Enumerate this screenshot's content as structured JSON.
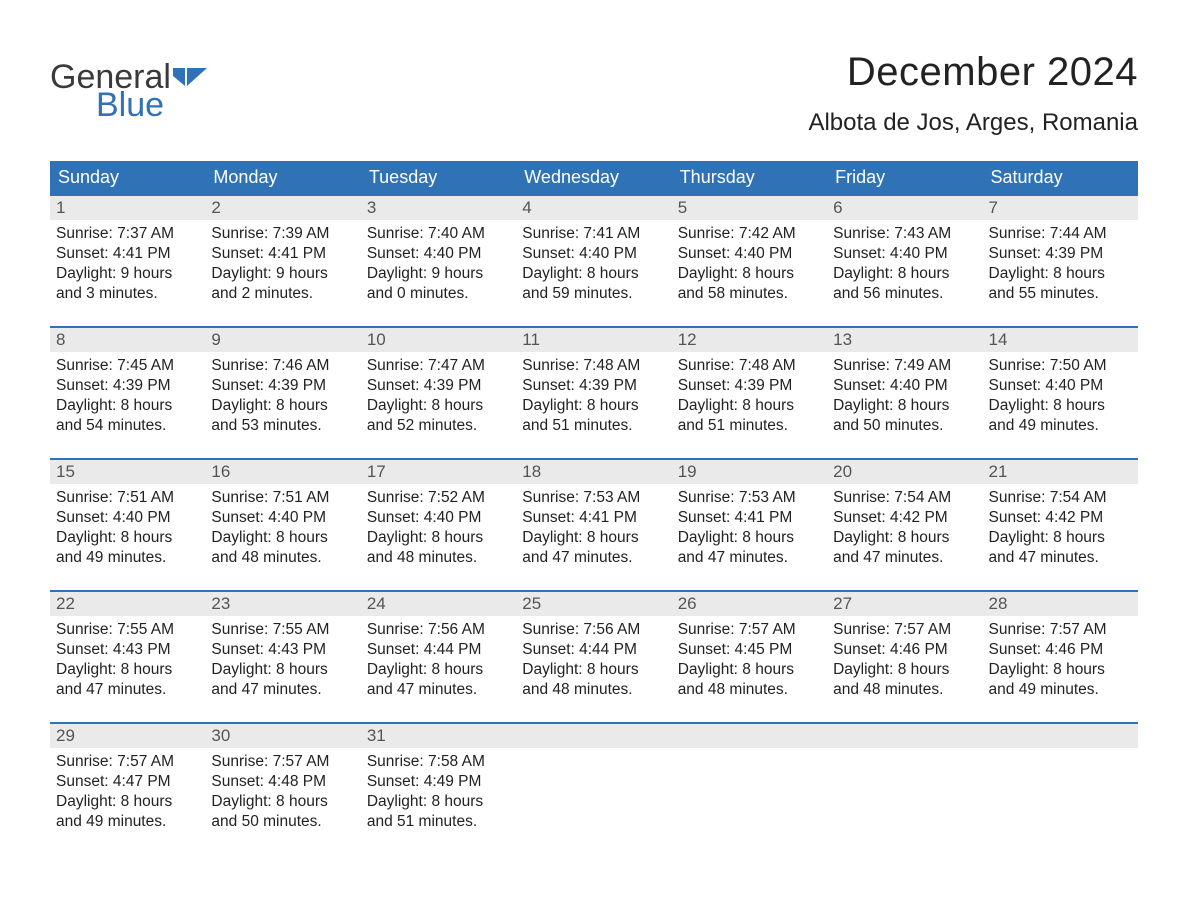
{
  "brand": {
    "part1": "General",
    "part2": "Blue",
    "flag_color": "#2f73b6",
    "text_color": "#3a3a3a"
  },
  "title": "December 2024",
  "location": "Albota de Jos, Arges, Romania",
  "colors": {
    "header_bg": "#2f73b6",
    "header_text": "#ffffff",
    "daynum_bg": "#eaeaea",
    "week_border": "#2f73b6",
    "body_text": "#222222"
  },
  "weekdays": [
    "Sunday",
    "Monday",
    "Tuesday",
    "Wednesday",
    "Thursday",
    "Friday",
    "Saturday"
  ],
  "weeks": [
    [
      {
        "num": "1",
        "sunrise": "7:37 AM",
        "sunset": "4:41 PM",
        "dl_h": "9",
        "dl_m": "3"
      },
      {
        "num": "2",
        "sunrise": "7:39 AM",
        "sunset": "4:41 PM",
        "dl_h": "9",
        "dl_m": "2"
      },
      {
        "num": "3",
        "sunrise": "7:40 AM",
        "sunset": "4:40 PM",
        "dl_h": "9",
        "dl_m": "0"
      },
      {
        "num": "4",
        "sunrise": "7:41 AM",
        "sunset": "4:40 PM",
        "dl_h": "8",
        "dl_m": "59"
      },
      {
        "num": "5",
        "sunrise": "7:42 AM",
        "sunset": "4:40 PM",
        "dl_h": "8",
        "dl_m": "58"
      },
      {
        "num": "6",
        "sunrise": "7:43 AM",
        "sunset": "4:40 PM",
        "dl_h": "8",
        "dl_m": "56"
      },
      {
        "num": "7",
        "sunrise": "7:44 AM",
        "sunset": "4:39 PM",
        "dl_h": "8",
        "dl_m": "55"
      }
    ],
    [
      {
        "num": "8",
        "sunrise": "7:45 AM",
        "sunset": "4:39 PM",
        "dl_h": "8",
        "dl_m": "54"
      },
      {
        "num": "9",
        "sunrise": "7:46 AM",
        "sunset": "4:39 PM",
        "dl_h": "8",
        "dl_m": "53"
      },
      {
        "num": "10",
        "sunrise": "7:47 AM",
        "sunset": "4:39 PM",
        "dl_h": "8",
        "dl_m": "52"
      },
      {
        "num": "11",
        "sunrise": "7:48 AM",
        "sunset": "4:39 PM",
        "dl_h": "8",
        "dl_m": "51"
      },
      {
        "num": "12",
        "sunrise": "7:48 AM",
        "sunset": "4:39 PM",
        "dl_h": "8",
        "dl_m": "51"
      },
      {
        "num": "13",
        "sunrise": "7:49 AM",
        "sunset": "4:40 PM",
        "dl_h": "8",
        "dl_m": "50"
      },
      {
        "num": "14",
        "sunrise": "7:50 AM",
        "sunset": "4:40 PM",
        "dl_h": "8",
        "dl_m": "49"
      }
    ],
    [
      {
        "num": "15",
        "sunrise": "7:51 AM",
        "sunset": "4:40 PM",
        "dl_h": "8",
        "dl_m": "49"
      },
      {
        "num": "16",
        "sunrise": "7:51 AM",
        "sunset": "4:40 PM",
        "dl_h": "8",
        "dl_m": "48"
      },
      {
        "num": "17",
        "sunrise": "7:52 AM",
        "sunset": "4:40 PM",
        "dl_h": "8",
        "dl_m": "48"
      },
      {
        "num": "18",
        "sunrise": "7:53 AM",
        "sunset": "4:41 PM",
        "dl_h": "8",
        "dl_m": "47"
      },
      {
        "num": "19",
        "sunrise": "7:53 AM",
        "sunset": "4:41 PM",
        "dl_h": "8",
        "dl_m": "47"
      },
      {
        "num": "20",
        "sunrise": "7:54 AM",
        "sunset": "4:42 PM",
        "dl_h": "8",
        "dl_m": "47"
      },
      {
        "num": "21",
        "sunrise": "7:54 AM",
        "sunset": "4:42 PM",
        "dl_h": "8",
        "dl_m": "47"
      }
    ],
    [
      {
        "num": "22",
        "sunrise": "7:55 AM",
        "sunset": "4:43 PM",
        "dl_h": "8",
        "dl_m": "47"
      },
      {
        "num": "23",
        "sunrise": "7:55 AM",
        "sunset": "4:43 PM",
        "dl_h": "8",
        "dl_m": "47"
      },
      {
        "num": "24",
        "sunrise": "7:56 AM",
        "sunset": "4:44 PM",
        "dl_h": "8",
        "dl_m": "47"
      },
      {
        "num": "25",
        "sunrise": "7:56 AM",
        "sunset": "4:44 PM",
        "dl_h": "8",
        "dl_m": "48"
      },
      {
        "num": "26",
        "sunrise": "7:57 AM",
        "sunset": "4:45 PM",
        "dl_h": "8",
        "dl_m": "48"
      },
      {
        "num": "27",
        "sunrise": "7:57 AM",
        "sunset": "4:46 PM",
        "dl_h": "8",
        "dl_m": "48"
      },
      {
        "num": "28",
        "sunrise": "7:57 AM",
        "sunset": "4:46 PM",
        "dl_h": "8",
        "dl_m": "49"
      }
    ],
    [
      {
        "num": "29",
        "sunrise": "7:57 AM",
        "sunset": "4:47 PM",
        "dl_h": "8",
        "dl_m": "49"
      },
      {
        "num": "30",
        "sunrise": "7:57 AM",
        "sunset": "4:48 PM",
        "dl_h": "8",
        "dl_m": "50"
      },
      {
        "num": "31",
        "sunrise": "7:58 AM",
        "sunset": "4:49 PM",
        "dl_h": "8",
        "dl_m": "51"
      },
      null,
      null,
      null,
      null
    ]
  ],
  "labels": {
    "sunrise_prefix": "Sunrise: ",
    "sunset_prefix": "Sunset: ",
    "daylight_prefix": "Daylight: ",
    "hours_word": " hours",
    "and_word": "and ",
    "minutes_word": " minutes."
  }
}
